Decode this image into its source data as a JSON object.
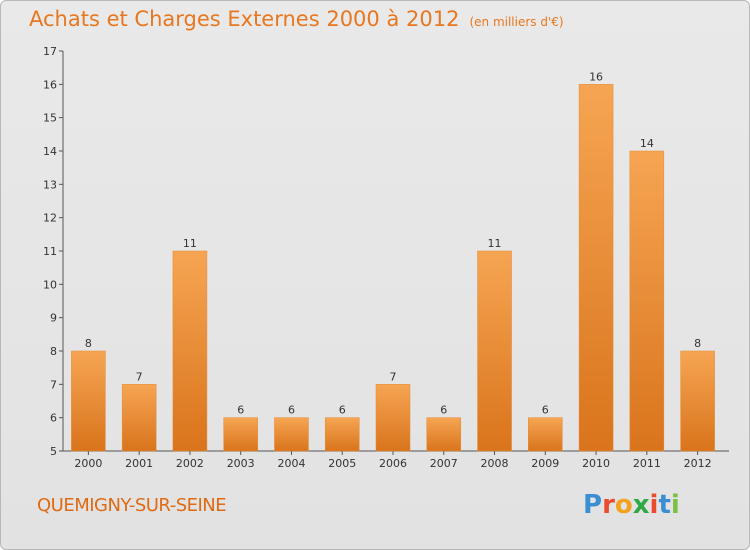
{
  "header": {
    "title": "Achats et Charges Externes 2000 à 2012",
    "subtitle": "(en milliers d'€)"
  },
  "footer": {
    "commune": "QUEMIGNY-SUR-SEINE",
    "logo_letters": [
      "P",
      "r",
      "o",
      "x",
      "i",
      "t",
      "i"
    ],
    "logo_colors": [
      "#3a8fd4",
      "#e94b2f",
      "#f2a21c",
      "#2fa845",
      "#e94b2f",
      "#3a8fd4",
      "#7ac143"
    ]
  },
  "chart_data": {
    "type": "bar",
    "title": "Achats et Charges Externes 2000 à 2012",
    "categories": [
      "2000",
      "2001",
      "2002",
      "2003",
      "2004",
      "2005",
      "2006",
      "2007",
      "2008",
      "2009",
      "2010",
      "2011",
      "2012"
    ],
    "values": [
      8,
      7,
      11,
      6,
      6,
      6,
      7,
      6,
      11,
      6,
      16,
      14,
      8
    ],
    "ylim": [
      5,
      17
    ],
    "yticks": [
      5,
      6,
      7,
      8,
      9,
      10,
      11,
      12,
      13,
      14,
      15,
      16,
      17
    ],
    "grid": false,
    "colors": {
      "bar_light": "#f6a553",
      "bar_dark": "#d9741c",
      "title": "#e8771f"
    }
  }
}
